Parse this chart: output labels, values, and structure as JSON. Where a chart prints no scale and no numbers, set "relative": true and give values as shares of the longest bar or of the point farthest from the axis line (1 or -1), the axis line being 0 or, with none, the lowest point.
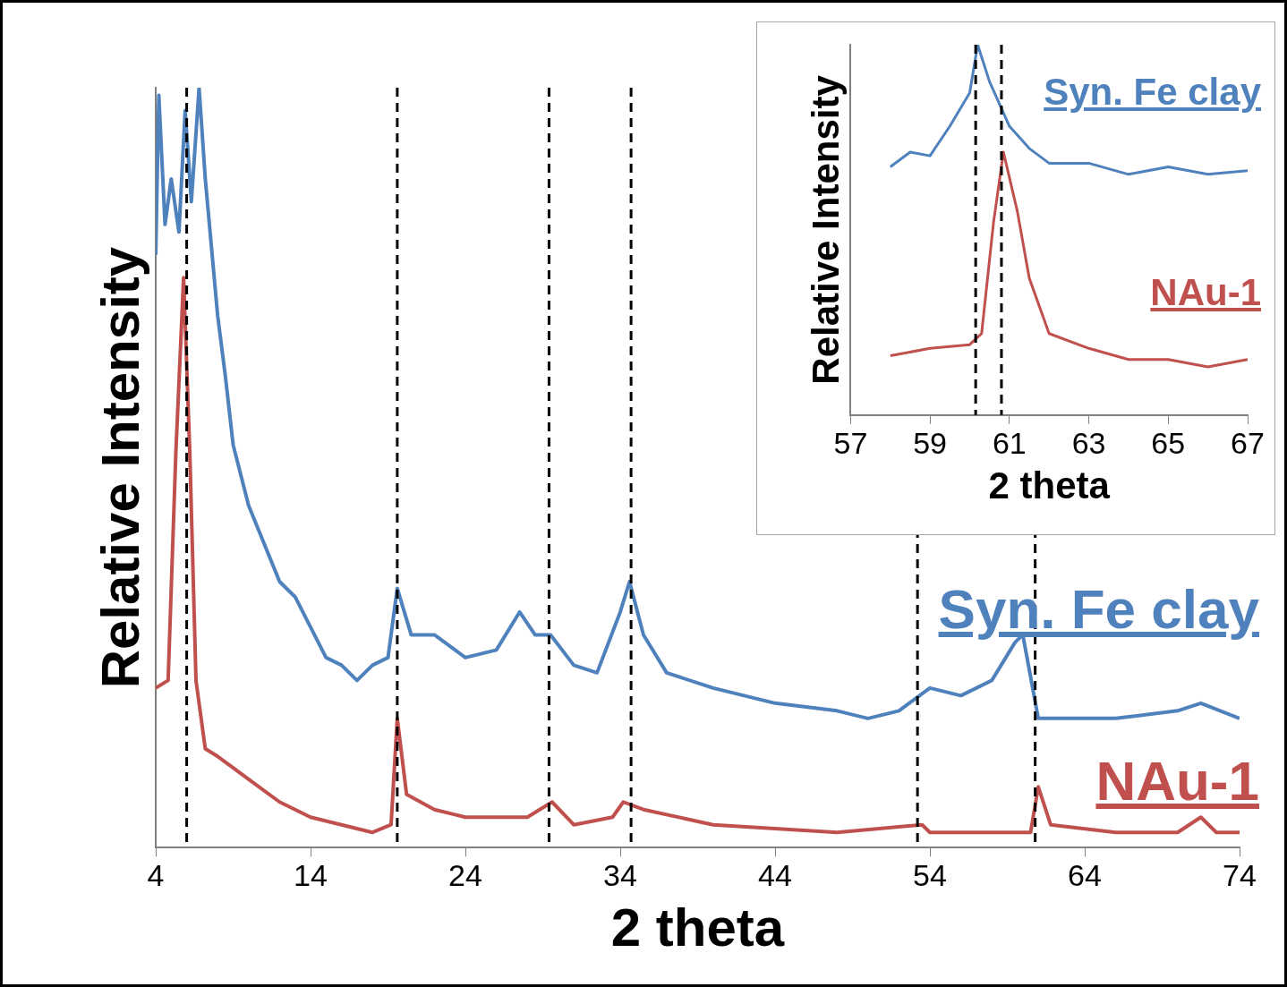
{
  "chart_data": [
    {
      "type": "line",
      "xlabel": "2 theta",
      "ylabel": "Relative Intensity",
      "relative": true,
      "xlim": [
        4,
        74
      ],
      "xticks": [
        4,
        14,
        24,
        34,
        44,
        54,
        64,
        74
      ],
      "grid": false,
      "legend": false,
      "marker": "none",
      "line_style": "solid",
      "series": [
        {
          "name": "Syn. Fe clay",
          "color": "#4f81bd",
          "x": [
            4,
            4.2,
            4.6,
            5,
            5.5,
            5.9,
            6.3,
            6.8,
            7.2,
            7.6,
            8,
            8.5,
            9,
            10,
            11,
            12,
            13,
            14,
            15,
            16,
            17,
            18,
            19,
            19.6,
            20.5,
            22,
            24,
            26,
            27.5,
            28.5,
            29.5,
            31,
            32.5,
            34,
            34.6,
            35.5,
            37,
            40,
            44,
            48,
            50,
            52,
            54,
            56,
            58,
            59.5,
            60,
            61,
            62,
            66,
            70,
            71.5,
            74
          ],
          "values": [
            0.78,
            0.99,
            0.82,
            0.88,
            0.81,
            0.97,
            0.85,
            1,
            0.88,
            0.79,
            0.7,
            0.62,
            0.53,
            0.45,
            0.4,
            0.35,
            0.33,
            0.29,
            0.25,
            0.24,
            0.22,
            0.24,
            0.25,
            0.341,
            0.28,
            0.28,
            0.25,
            0.26,
            0.31,
            0.28,
            0.28,
            0.24,
            0.23,
            0.31,
            0.35,
            0.28,
            0.23,
            0.21,
            0.19,
            0.18,
            0.17,
            0.18,
            0.21,
            0.2,
            0.22,
            0.27,
            0.28,
            0.17,
            0.17,
            0.17,
            0.18,
            0.19,
            0.17
          ]
        },
        {
          "name": "NAu-1",
          "color": "#c0504d",
          "x": [
            4,
            4.8,
            5.3,
            5.8,
            6.2,
            6.6,
            7.2,
            8,
            10,
            12,
            14,
            16,
            18,
            19.2,
            19.6,
            20.2,
            22,
            24,
            26,
            28,
            29.6,
            31,
            33.5,
            34.2,
            35.5,
            40,
            48,
            53.5,
            54,
            58,
            60.5,
            61,
            61.8,
            66,
            70,
            71.5,
            72.5,
            74
          ],
          "values": [
            0.21,
            0.22,
            0.52,
            0.75,
            0.52,
            0.22,
            0.13,
            0.12,
            0.09,
            0.06,
            0.04,
            0.03,
            0.02,
            0.03,
            0.17,
            0.07,
            0.05,
            0.04,
            0.04,
            0.04,
            0.06,
            0.03,
            0.04,
            0.06,
            0.05,
            0.03,
            0.02,
            0.03,
            0.02,
            0.02,
            0.02,
            0.08,
            0.03,
            0.02,
            0.02,
            0.04,
            0.02,
            0.02
          ]
        }
      ],
      "ref_lines": [
        {
          "axis": "x",
          "value": 6,
          "color": "#000000",
          "line_style": "dashed"
        },
        {
          "axis": "x",
          "value": 19.6,
          "color": "#000000",
          "line_style": "dashed"
        },
        {
          "axis": "x",
          "value": 29.4,
          "color": "#000000",
          "line_style": "dashed"
        },
        {
          "axis": "x",
          "value": 34.7,
          "color": "#000000",
          "line_style": "dashed"
        },
        {
          "axis": "x",
          "value": 53.2,
          "color": "#000000",
          "line_style": "dashed"
        },
        {
          "axis": "x",
          "value": 60.8,
          "color": "#000000",
          "line_style": "dashed"
        }
      ]
    },
    {
      "type": "line",
      "xlabel": "2 theta",
      "ylabel": "Relative Intensity",
      "relative": true,
      "xlim": [
        57,
        67
      ],
      "xticks": [
        57,
        59,
        61,
        63,
        65,
        67
      ],
      "grid": false,
      "legend": false,
      "marker": "none",
      "line_style": "solid",
      "series": [
        {
          "name": "Syn. Fe clay",
          "color": "#4f81bd",
          "x": [
            58,
            58.5,
            59,
            59.5,
            60,
            60.2,
            60.5,
            61,
            61.5,
            62,
            63,
            64,
            65,
            66,
            67
          ],
          "values": [
            0.67,
            0.71,
            0.7,
            0.78,
            0.87,
            1,
            0.9,
            0.78,
            0.72,
            0.68,
            0.68,
            0.65,
            0.67,
            0.65,
            0.66
          ]
        },
        {
          "name": "NAu-1",
          "color": "#c0504d",
          "x": [
            58,
            59,
            60,
            60.3,
            60.6,
            60.85,
            61.2,
            61.5,
            62,
            63,
            64,
            65,
            66,
            67
          ],
          "values": [
            0.16,
            0.18,
            0.19,
            0.22,
            0.52,
            0.71,
            0.55,
            0.37,
            0.22,
            0.18,
            0.15,
            0.15,
            0.13,
            0.15
          ]
        }
      ],
      "ref_lines": [
        {
          "axis": "x",
          "value": 60.15,
          "color": "#000000",
          "line_style": "dashed"
        },
        {
          "axis": "x",
          "value": 60.8,
          "color": "#000000",
          "line_style": "dashed"
        }
      ]
    }
  ]
}
